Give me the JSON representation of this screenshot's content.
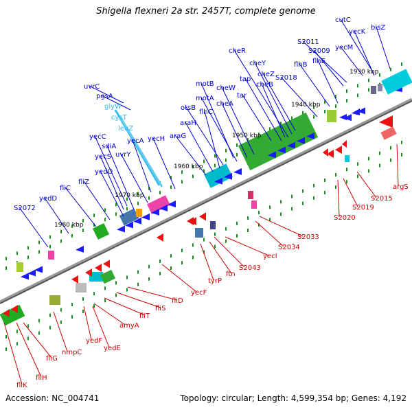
{
  "title": "Shigella flexneri 2a str. 2457T, complete genome",
  "accession": "Accession: NC_004741",
  "summary": "Topology: circular; Length: 4,599,354 bp; Genes: 4,192",
  "colors": {
    "backbone": "#777777",
    "forward_label": "#0000cc",
    "reverse_label": "#cc0000",
    "rna_label": "#33bbee",
    "tick": "#228822"
  },
  "scale_labels": [
    "1930 kbp",
    "1940 kbp",
    "1950 kbp",
    "1960 kbp",
    "1970 kbp",
    "1980 kbp"
  ],
  "forward_genes": [
    "cutC",
    "bisZ",
    "yecK",
    "yecM",
    "S2011",
    "S2009",
    "flhE",
    "flhB",
    "S2018",
    "cheR",
    "cheY",
    "cheZ",
    "tap",
    "cheB",
    "tar",
    "cheW",
    "motB",
    "motA",
    "cheA",
    "otsB",
    "flhC",
    "araH",
    "araG",
    "uvrC",
    "pgsA",
    "yecA",
    "yecH",
    "yecC",
    "sdiA",
    "uvrY",
    "yecS",
    "yedO",
    "fliZ",
    "fliC",
    "yedD",
    "S2072"
  ],
  "rna_genes": [
    "glyW",
    "cysT",
    "leuZ"
  ],
  "reverse_genes": [
    "argS",
    "S2015",
    "S2019",
    "S2020",
    "S2033",
    "S2034",
    "yecI",
    "S2043",
    "ftn",
    "tyrP",
    "yecF",
    "fliD",
    "fliS",
    "fliT",
    "amyA",
    "yedE",
    "yedF",
    "nmpC",
    "fliG",
    "fliH",
    "fliK"
  ]
}
